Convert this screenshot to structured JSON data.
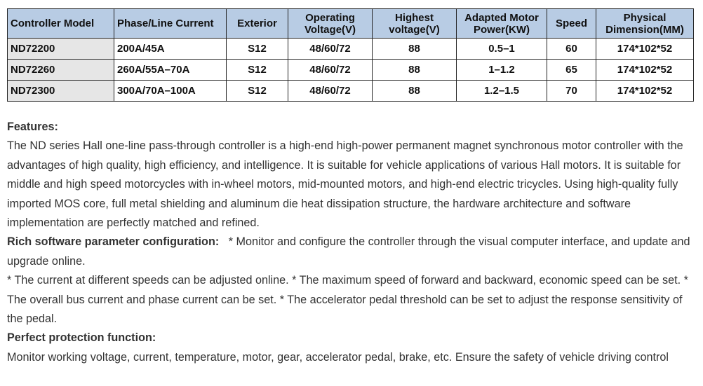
{
  "table": {
    "headers": [
      "Controller Model",
      "Phase/Line Current",
      "Exterior",
      "Operating Voltage(V)",
      "Highest voltage(V)",
      "Adapted Motor Power(KW)",
      "Speed",
      "Physical Dimension(MM)"
    ],
    "rows": [
      [
        "ND72200",
        "200A/45A",
        "S12",
        "48/60/72",
        "88",
        "0.5–1",
        "60",
        "174*102*52"
      ],
      [
        "ND72260",
        "260A/55A–70A",
        "S12",
        "48/60/72",
        "88",
        "1–1.2",
        "65",
        "174*102*52"
      ],
      [
        "ND72300",
        "300A/70A–100A",
        "S12",
        "48/60/72",
        "88",
        "1.2–1.5",
        "70",
        "174*102*52"
      ]
    ],
    "header_color": "#b8cce4",
    "model_cell_color": "#e6e6e6"
  },
  "content": {
    "features_heading": "Features:",
    "features_text": "The ND series Hall one-line pass-through controller is a high-end high-power permanent magnet synchronous motor controller with the advantages of high quality, high efficiency, and intelligence. It is suitable for vehicle applications of various Hall motors. It is suitable for middle and high speed motorcycles with in-wheel motors, mid-mounted motors, and high-end electric tricycles. Using high-quality fully imported MOS core, full metal shielding and aluminum die heat dissipation structure, the hardware architecture and software implementation are perfectly matched and refined.",
    "software_heading": "Rich software parameter configuration:",
    "software_text": "   * Monitor and configure the controller through the visual computer interface, and update and upgrade online.",
    "software_text2": "* The current at different speeds can be adjusted online. * The maximum speed of forward and backward, economic speed can be set. * The overall bus current and phase current can be set. * The accelerator pedal threshold can be set to adjust the response sensitivity of the pedal.",
    "protection_heading": "Perfect protection function:",
    "protection_text": "Monitor working voltage, current, temperature, motor, gear, accelerator pedal, brake, etc. Ensure the safety of vehicle driving control"
  }
}
